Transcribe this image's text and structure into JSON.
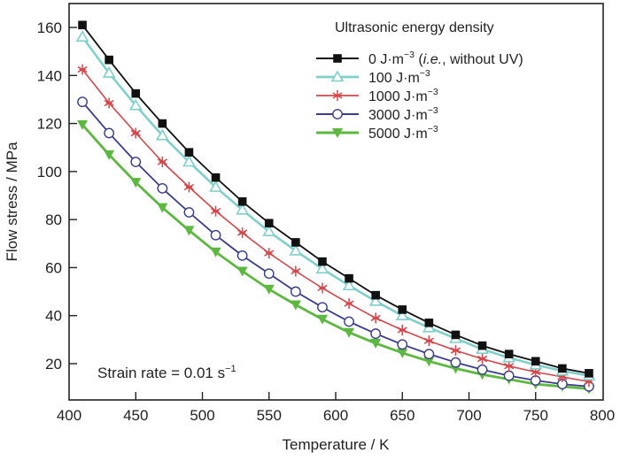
{
  "chart_data": {
    "type": "line",
    "title": "",
    "xlabel": "Temperature / K",
    "ylabel": "Flow stress / MPa",
    "xlim": [
      400,
      800
    ],
    "ylim": [
      5,
      170
    ],
    "xticks": [
      400,
      450,
      500,
      550,
      600,
      650,
      700,
      750,
      800
    ],
    "yticks": [
      20,
      40,
      60,
      80,
      100,
      120,
      140,
      160
    ],
    "grid": false,
    "legend": {
      "title": "Ultrasonic energy density",
      "placement": "top-right"
    },
    "annotation": {
      "text": "Strain rate = 0.01 s",
      "superscript": "−1",
      "placement": "bottom-left"
    },
    "x": [
      410,
      430,
      450,
      470,
      490,
      510,
      530,
      550,
      570,
      590,
      610,
      630,
      650,
      670,
      690,
      710,
      730,
      750,
      770,
      790
    ],
    "series": [
      {
        "name": "0 J·m−3 (i.e., without UV)",
        "label_prefix": "0 J·m",
        "label_sup": "−3",
        "label_suffix_pre": " (",
        "label_italic": "i.e.",
        "label_suffix_post": ", without UV)",
        "color": "#111111",
        "marker": "square-filled",
        "values": [
          161,
          146.5,
          132.5,
          120,
          108,
          97.5,
          87.5,
          78.5,
          70.5,
          62.5,
          55.5,
          48.5,
          42.5,
          37,
          32,
          27.5,
          24,
          21,
          18,
          16
        ]
      },
      {
        "name": "100 J·m−3",
        "label_prefix": "100 J·m",
        "label_sup": "−3",
        "color": "#7fcfca",
        "marker": "triangle-up-open",
        "values": [
          156,
          141,
          127.5,
          115,
          104,
          93.5,
          84,
          75,
          67,
          59.5,
          52.5,
          46,
          40,
          35,
          30.5,
          26,
          22.5,
          19.5,
          17,
          15
        ]
      },
      {
        "name": "1000 J·m−3",
        "label_prefix": "1000 J·m",
        "label_sup": "−3",
        "color": "#d6454a",
        "marker": "asterisk",
        "values": [
          142.5,
          128.5,
          116,
          104,
          93.5,
          83.5,
          74.5,
          66,
          58.5,
          51.5,
          45,
          39,
          34,
          29.5,
          25.5,
          22,
          19,
          16.5,
          14.5,
          12.5
        ]
      },
      {
        "name": "3000 J·m−3",
        "label_prefix": "3000 J·m",
        "label_sup": "−3",
        "color": "#3a3d8c",
        "marker": "circle-open",
        "values": [
          129,
          116,
          104,
          93,
          83,
          73.5,
          65,
          57.5,
          50,
          43.5,
          37.5,
          32.5,
          28,
          24,
          20.5,
          17.5,
          15,
          13,
          11.5,
          10.5
        ]
      },
      {
        "name": "5000 J·m−3",
        "label_prefix": "5000 J·m",
        "label_sup": "−3",
        "color": "#5cb83e",
        "marker": "triangle-down-filled",
        "values": [
          119.5,
          107,
          95.5,
          85,
          75.5,
          66.5,
          58.5,
          51,
          44.5,
          38.5,
          33,
          28.5,
          24.5,
          21,
          18,
          15.5,
          13.5,
          11.5,
          10.5,
          9.5
        ]
      }
    ]
  }
}
